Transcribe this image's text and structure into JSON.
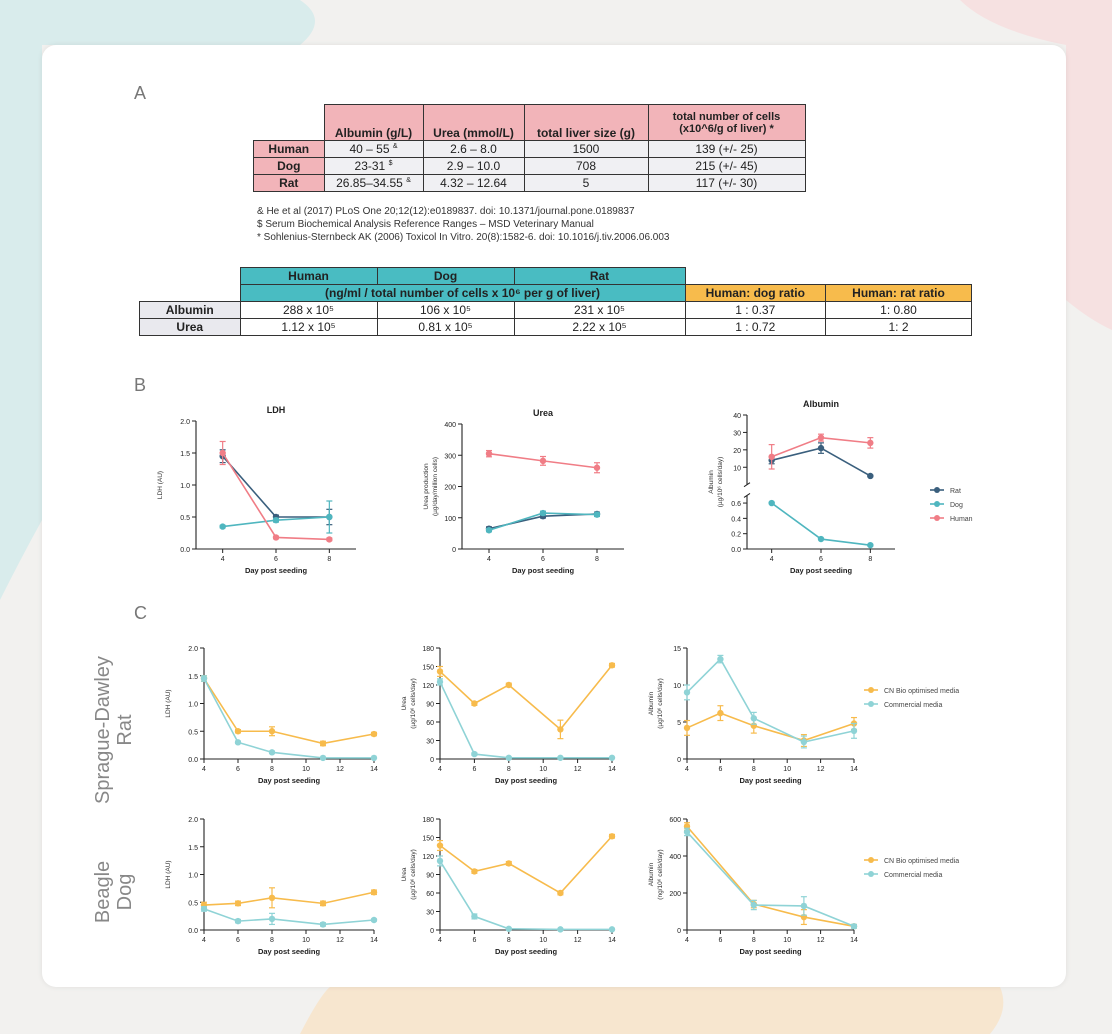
{
  "colors": {
    "pink": "#f2b4b9",
    "teal": "#49bcc2",
    "orange": "#f7bb4c",
    "rat": "#3a5f7d",
    "dog": "#4fb6bf",
    "human": "#f07d86",
    "optimised": "#f7bb4c",
    "commercial": "#8fd3d6"
  },
  "labels": {
    "a": "A",
    "b": "B",
    "c": "C"
  },
  "table1": {
    "headers": [
      "Albumin (g/L)",
      "Urea (mmol/L)",
      "total liver size (g)",
      "total number of cells",
      "(x10^6/g of liver) *"
    ],
    "rows": [
      {
        "name": "Human",
        "albumin": "40 – 55",
        "albumin_sup": "&",
        "urea": "2.6 – 8.0",
        "size": "1500",
        "cells": "139 (+/- 25)"
      },
      {
        "name": "Dog",
        "albumin": "23-31",
        "albumin_sup": "$",
        "urea": "2.9 – 10.0",
        "size": "708",
        "cells": "215 (+/- 45)"
      },
      {
        "name": "Rat",
        "albumin": "26.85–34.55",
        "albumin_sup": "&",
        "urea": "4.32 – 12.64",
        "size": "5",
        "cells": "117 (+/- 30)"
      }
    ]
  },
  "footnotes": [
    "& He et al (2017) PLoS One 20;12(12):e0189837. doi: 10.1371/journal.pone.0189837",
    "$ Serum Biochemical Analysis Reference Ranges – MSD Veterinary Manual",
    "* Sohlenius-Sternbeck AK (2006) Toxicol In Vitro. 20(8):1582-6. doi: 10.1016/j.tiv.2006.06.003"
  ],
  "table2": {
    "species": [
      "Human",
      "Dog",
      "Rat"
    ],
    "units": "(ng/ml / total number of cells x 10⁶ per g of liver)",
    "ratio_headers": [
      "Human: dog ratio",
      "Human: rat ratio"
    ],
    "rows": [
      {
        "name": "Albumin",
        "human": "288 x 10⁵",
        "dog": "106 x 10⁵",
        "rat": "231 x 10⁵",
        "hd": "1 : 0.37",
        "hr": "1: 0.80"
      },
      {
        "name": "Urea",
        "human": "1.12 x 10⁵",
        "dog": "0.81 x 10⁵",
        "rat": "2.22 x 10⁵",
        "hd": "1 : 0.72",
        "hr": "1: 2"
      }
    ]
  },
  "side_labels": {
    "rat": [
      "Sprague-Dawley",
      "Rat"
    ],
    "dog": [
      "Beagle",
      "Dog"
    ]
  },
  "chart_data": [
    {
      "id": "b-ldh",
      "type": "line",
      "title": "LDH",
      "xlabel": "Day post seeding",
      "ylabel": [
        "LDH (AU)"
      ],
      "x": [
        4,
        6,
        8
      ],
      "xticks": [
        4,
        6,
        8
      ],
      "xlim": [
        3,
        9
      ],
      "ylim": [
        0,
        2.0
      ],
      "yticks": [
        0,
        0.5,
        1.0,
        1.5,
        2.0
      ],
      "yticklabels": [
        "0.0",
        "0.5",
        "1.0",
        "1.5",
        "2.0"
      ],
      "series": [
        {
          "name": "Rat",
          "color": "#3a5f7d",
          "values": [
            1.45,
            0.5,
            0.5
          ],
          "err": [
            0.1,
            0.03,
            0.12
          ]
        },
        {
          "name": "Dog",
          "color": "#4fb6bf",
          "values": [
            0.35,
            0.45,
            0.5
          ],
          "err": [
            0.02,
            0.03,
            0.25
          ]
        },
        {
          "name": "Human",
          "color": "#f07d86",
          "values": [
            1.5,
            0.18,
            0.15
          ],
          "err": [
            0.18,
            0.02,
            0.02
          ]
        }
      ]
    },
    {
      "id": "b-urea",
      "type": "line",
      "title": "Urea",
      "xlabel": "Day post seeding",
      "ylabel": [
        "Urea production",
        "(µg/day/million cells)"
      ],
      "x": [
        4,
        6,
        8
      ],
      "xticks": [
        4,
        6,
        8
      ],
      "xlim": [
        3,
        9
      ],
      "ylim": [
        0,
        400
      ],
      "yticks": [
        0,
        100,
        200,
        300,
        400
      ],
      "yticklabels": [
        "0",
        "100",
        "200",
        "300",
        "400"
      ],
      "series": [
        {
          "name": "Rat",
          "color": "#3a5f7d",
          "values": [
            65,
            105,
            112
          ],
          "err": [
            6,
            6,
            6
          ]
        },
        {
          "name": "Dog",
          "color": "#4fb6bf",
          "values": [
            60,
            115,
            110
          ],
          "err": [
            5,
            6,
            6
          ]
        },
        {
          "name": "Human",
          "color": "#f07d86",
          "values": [
            305,
            282,
            260
          ],
          "err": [
            10,
            14,
            16
          ]
        }
      ]
    },
    {
      "id": "b-alb",
      "type": "line",
      "title": "Albumin",
      "xlabel": "Day post seeding",
      "ylabel": [
        "Albumin",
        "(µg/10⁶ cells/day)"
      ],
      "broken_axis": true,
      "x": [
        4,
        6,
        8
      ],
      "xticks": [
        4,
        6,
        8
      ],
      "xlim": [
        3,
        9
      ],
      "upper": {
        "ylim": [
          0,
          40
        ],
        "yticks": [
          10,
          20,
          30,
          40
        ]
      },
      "lower": {
        "ylim": [
          0,
          0.7
        ],
        "yticks": [
          0.0,
          0.2,
          0.4,
          0.6
        ],
        "yticklabels": [
          "0.0",
          "0.2",
          "0.4",
          "0.6"
        ]
      },
      "series": [
        {
          "name": "Rat",
          "color": "#3a5f7d",
          "values": [
            14,
            21,
            5
          ],
          "err": [
            2,
            3,
            0.5
          ],
          "segment": "upper"
        },
        {
          "name": "Dog",
          "color": "#4fb6bf",
          "values": [
            0.6,
            0.13,
            0.05
          ],
          "err": [
            0.01,
            0.01,
            0.01
          ],
          "segment": "lower"
        },
        {
          "name": "Human",
          "color": "#f07d86",
          "values": [
            16,
            27,
            24
          ],
          "err": [
            7,
            2,
            3
          ],
          "segment": "upper"
        }
      ],
      "legend": [
        "Rat",
        "Dog",
        "Human"
      ]
    },
    {
      "id": "c-rat-ldh",
      "type": "line",
      "xlabel": "Day post seeding",
      "ylabel": [
        "LDH (AU)"
      ],
      "x": [
        4,
        6,
        8,
        11,
        14
      ],
      "xticks": [
        4,
        6,
        8,
        10,
        12,
        14
      ],
      "xlim": [
        4,
        14
      ],
      "ylim": [
        0,
        2.0
      ],
      "yticks": [
        0,
        0.5,
        1.0,
        1.5,
        2.0
      ],
      "yticklabels": [
        "0.0",
        "0.5",
        "1.0",
        "1.5",
        "2.0"
      ],
      "series": [
        {
          "name": "CN Bio optimised media",
          "color": "#f7bb4c",
          "values": [
            1.45,
            0.5,
            0.5,
            0.28,
            0.45
          ],
          "err": [
            0.05,
            0.03,
            0.08,
            0.04,
            0.03
          ]
        },
        {
          "name": "Commercial media",
          "color": "#8fd3d6",
          "values": [
            1.45,
            0.3,
            0.12,
            0.02,
            0.02
          ],
          "err": [
            0.05,
            0.02,
            0.02,
            0.01,
            0.01
          ]
        }
      ]
    },
    {
      "id": "c-rat-urea",
      "type": "line",
      "xlabel": "Day post seeding",
      "ylabel": [
        "Urea",
        "(µg/10⁶ cells/day)"
      ],
      "x": [
        4,
        6,
        8,
        11,
        14
      ],
      "xticks": [
        4,
        6,
        8,
        10,
        12,
        14
      ],
      "xlim": [
        4,
        14
      ],
      "ylim": [
        0,
        180
      ],
      "yticks": [
        0,
        30,
        60,
        90,
        120,
        150,
        180
      ],
      "yticklabels": [
        "0",
        "30",
        "60",
        "90",
        "120",
        "150",
        "180"
      ],
      "series": [
        {
          "name": "CN Bio optimised media",
          "color": "#f7bb4c",
          "values": [
            142,
            90,
            120,
            48,
            152
          ],
          "err": [
            8,
            3,
            3,
            15,
            3
          ]
        },
        {
          "name": "Commercial media",
          "color": "#8fd3d6",
          "values": [
            125,
            8,
            2,
            2,
            2
          ],
          "err": [
            5,
            2,
            1,
            1,
            1
          ]
        }
      ]
    },
    {
      "id": "c-rat-alb",
      "type": "line",
      "xlabel": "Day post seeding",
      "ylabel": [
        "Albumin",
        "(µg/10⁶ cells/day)"
      ],
      "x": [
        4,
        6,
        8,
        11,
        14
      ],
      "xticks": [
        4,
        6,
        8,
        10,
        12,
        14
      ],
      "xlim": [
        4,
        14
      ],
      "ylim": [
        0,
        15
      ],
      "yticks": [
        0,
        5,
        10,
        15
      ],
      "yticklabels": [
        "0",
        "5",
        "10",
        "15"
      ],
      "series": [
        {
          "name": "CN Bio optimised media",
          "color": "#f7bb4c",
          "values": [
            4.2,
            6.2,
            4.5,
            2.5,
            4.8
          ],
          "err": [
            1,
            1,
            1,
            0.8,
            0.8
          ]
        },
        {
          "name": "Commercial media",
          "color": "#8fd3d6",
          "values": [
            9,
            13.5,
            5.5,
            2.3,
            3.8
          ],
          "err": [
            1,
            0.5,
            0.8,
            0.8,
            1
          ]
        }
      ],
      "legend": [
        "CN Bio optimised media",
        "Commercial media"
      ]
    },
    {
      "id": "c-dog-ldh",
      "type": "line",
      "xlabel": "Day post seeding",
      "ylabel": [
        "LDH (AU)"
      ],
      "x": [
        4,
        6,
        8,
        11,
        14
      ],
      "xticks": [
        4,
        6,
        8,
        10,
        12,
        14
      ],
      "xlim": [
        4,
        14
      ],
      "ylim": [
        0,
        2.0
      ],
      "yticks": [
        0,
        0.5,
        1.0,
        1.5,
        2.0
      ],
      "yticklabels": [
        "0.0",
        "0.5",
        "1.0",
        "1.5",
        "2.0"
      ],
      "series": [
        {
          "name": "CN Bio optimised media",
          "color": "#f7bb4c",
          "values": [
            0.45,
            0.48,
            0.58,
            0.48,
            0.68
          ],
          "err": [
            0.05,
            0.04,
            0.18,
            0.04,
            0.04
          ]
        },
        {
          "name": "Commercial media",
          "color": "#8fd3d6",
          "values": [
            0.38,
            0.16,
            0.2,
            0.1,
            0.18
          ],
          "err": [
            0.04,
            0.03,
            0.1,
            0.03,
            0.02
          ]
        }
      ]
    },
    {
      "id": "c-dog-urea",
      "type": "line",
      "xlabel": "Day post seeding",
      "ylabel": [
        "Urea",
        "(µg/10⁶ cells/day)"
      ],
      "x": [
        4,
        6,
        8,
        11,
        14
      ],
      "xticks": [
        4,
        6,
        8,
        10,
        12,
        14
      ],
      "xlim": [
        4,
        14
      ],
      "ylim": [
        0,
        180
      ],
      "yticks": [
        0,
        30,
        60,
        90,
        120,
        150,
        180
      ],
      "yticklabels": [
        "0",
        "30",
        "60",
        "90",
        "120",
        "150",
        "180"
      ],
      "series": [
        {
          "name": "CN Bio optimised media",
          "color": "#f7bb4c",
          "values": [
            137,
            95,
            108,
            60,
            152
          ],
          "err": [
            8,
            3,
            3,
            3,
            3
          ]
        },
        {
          "name": "Commercial media",
          "color": "#8fd3d6",
          "values": [
            112,
            22,
            2,
            1,
            1
          ],
          "err": [
            8,
            4,
            1,
            1,
            1
          ]
        }
      ]
    },
    {
      "id": "c-dog-alb",
      "type": "line",
      "xlabel": "Day post seeding",
      "ylabel": [
        "Albumin",
        "(ng/10⁶ cells/day)"
      ],
      "x": [
        4,
        8,
        11,
        14
      ],
      "xticks": [
        4,
        6,
        8,
        10,
        12,
        14
      ],
      "xlim": [
        4,
        14
      ],
      "ylim": [
        0,
        600
      ],
      "yticks": [
        0,
        200,
        400,
        600
      ],
      "yticklabels": [
        "0",
        "200",
        "400",
        "600"
      ],
      "series": [
        {
          "name": "CN Bio optimised media",
          "color": "#f7bb4c",
          "values": [
            560,
            140,
            70,
            20
          ],
          "err": [
            20,
            20,
            40,
            10
          ]
        },
        {
          "name": "Commercial media",
          "color": "#8fd3d6",
          "values": [
            530,
            135,
            130,
            20
          ],
          "err": [
            20,
            25,
            50,
            10
          ]
        }
      ],
      "legend": [
        "CN Bio optimised media",
        "Commercial media"
      ]
    }
  ]
}
